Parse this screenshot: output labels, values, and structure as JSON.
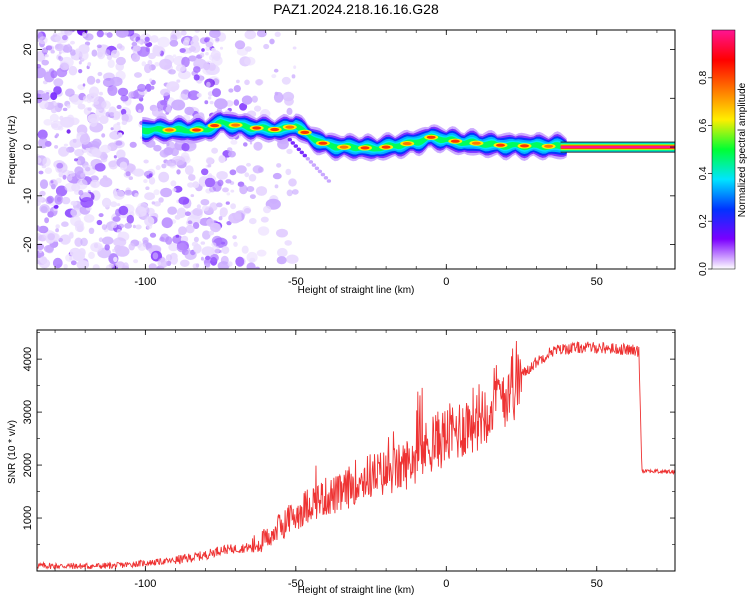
{
  "title": "PAZ1.2024.218.16.16.G28",
  "chart_data": [
    {
      "type": "heatmap",
      "xlabel": "Height of straight line (km)",
      "ylabel": "Frequency (Hz)",
      "xlim": [
        -136,
        76
      ],
      "ylim": [
        -25,
        24
      ],
      "xticks": [
        -100,
        -50,
        0,
        50
      ],
      "yticks": [
        20,
        10,
        0,
        -10,
        -20
      ],
      "colorbar": {
        "label": "Normalized spectral amplitude",
        "range": [
          0,
          1
        ],
        "ticks": [
          0.0,
          0.2,
          0.4,
          0.6,
          0.8
        ],
        "colormap": [
          "#ffffff",
          "#7b00ff",
          "#0033ff",
          "#00e5ff",
          "#00ff33",
          "#ffee00",
          "#ff7700",
          "#ff0000",
          "#ff1493"
        ]
      },
      "ridge": {
        "x": [
          -100,
          -90,
          -80,
          -75,
          -65,
          -55,
          -50,
          -45,
          -40,
          -35,
          -30,
          -25,
          -20,
          -15,
          -10,
          -5,
          0,
          5,
          10,
          15,
          20,
          30,
          40,
          50,
          60,
          76
        ],
        "freq": [
          3.5,
          3.5,
          3.5,
          5.0,
          4.0,
          3.5,
          4.5,
          2.0,
          0.5,
          0.0,
          0.0,
          -0.3,
          0.0,
          0.5,
          1.0,
          2.0,
          1.5,
          1.0,
          0.8,
          0.5,
          0.3,
          0.2,
          0.1,
          0.0,
          0.0,
          0.0
        ]
      }
    },
    {
      "type": "line",
      "xlabel": "Height of straight line (km)",
      "ylabel": "SNR (10 * v/v)",
      "xlim": [
        -136,
        76
      ],
      "ylim": [
        0,
        4550
      ],
      "xticks": [
        -100,
        -50,
        0,
        50
      ],
      "yticks": [
        1000,
        2000,
        3000,
        4000
      ],
      "color": "#ee3333",
      "x": [
        -136,
        -120,
        -110,
        -100,
        -90,
        -80,
        -75,
        -70,
        -65,
        -60,
        -55,
        -50,
        -45,
        -40,
        -35,
        -30,
        -25,
        -20,
        -15,
        -10,
        -5,
        0,
        5,
        10,
        15,
        20,
        25,
        30,
        35,
        40,
        45,
        50,
        55,
        60,
        64,
        65,
        70,
        76
      ],
      "y": [
        100,
        90,
        100,
        150,
        200,
        300,
        400,
        420,
        450,
        600,
        850,
        1050,
        1300,
        1400,
        1450,
        1700,
        1800,
        1850,
        1950,
        2150,
        2400,
        2550,
        2700,
        2900,
        3150,
        3450,
        3700,
        3950,
        4150,
        4200,
        4220,
        4220,
        4200,
        4180,
        4150,
        1900,
        1880,
        1870
      ]
    }
  ]
}
